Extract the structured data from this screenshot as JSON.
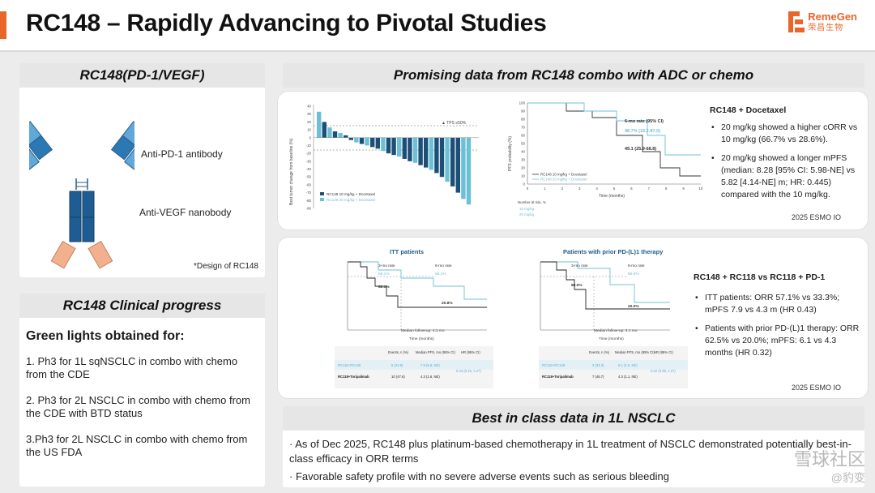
{
  "header": {
    "title": "RC148 – Rapidly Advancing to Pivotal Studies",
    "logo_text": "RemeGen",
    "logo_cn": "荣昌生物"
  },
  "mechanism": {
    "heading": "RC148(PD-1/VEGF)",
    "pd1_label": "Anti-PD-1 antibody",
    "vegf_label": "Anti-VEGF nanobody",
    "note": "*Design of RC148"
  },
  "progress": {
    "heading": "RC148 Clinical progress",
    "subtitle": "Green lights obtained for:",
    "items": [
      "1. Ph3 for 1L sqNSCLC in combo with chemo from the CDE",
      "2. Ph3 for 2L NSCLC in combo with chemo from the CDE with BTD status",
      "3.Ph3 for 2L NSCLC in combo with chemo from the US FDA"
    ]
  },
  "data_section": {
    "heading": "Promising data from RC148 combo with ADC or chemo",
    "card1": {
      "title": "RC148 + Docetaxel",
      "bullets": [
        "20 mg/kg showed a higher cORR vs 10 mg/kg (66.7% vs 28.6%).",
        "20 mg/kg showed a longer mPFS (median: 8.28 [95% CI: 5.98-NE] vs 5.82 [4.14-NE] m; HR: 0.445) compared with the 10 mg/kg."
      ],
      "source": "2025 ESMO IO",
      "waterfall": {
        "ylabel": "Best tumor change from baseline (%)",
        "y_ticks": [
          "40",
          "30",
          "20",
          "10",
          "0",
          "-10",
          "-20",
          "-30",
          "-40",
          "-50",
          "-60",
          "-70",
          "-80",
          "-90"
        ],
        "tps_label": "▲ TPS ≥50%",
        "legend": [
          "RC148 10 mg/kg + Docetaxel",
          "RC148 20 mg/kg + Docetaxel"
        ]
      },
      "km": {
        "ylabel": "PFS probability (%)",
        "xlabel": "Time (months)",
        "rate_label": "6-mo rate (95% CI)",
        "rate_20": "48.7% (16.2-87.0)",
        "rate_10": "49.1 (25.9-68.8)",
        "y_ticks": [
          "100",
          "90",
          "80",
          "70",
          "60",
          "50",
          "40",
          "30",
          "20",
          "10",
          "0"
        ],
        "x_ticks": [
          "0",
          "1",
          "2",
          "3",
          "4",
          "5",
          "6",
          "7",
          "8",
          "9",
          "10"
        ],
        "legend": [
          "RC148 10 mg/kg + Docetaxel",
          "RC148 20 mg/kg + Docetaxel"
        ],
        "risk_label": "Number at risk, %",
        "risk_rows": [
          "10 mg/kg",
          "20 mg/kg"
        ]
      }
    },
    "card2": {
      "title": "RC148 + RC118 vs RC118 + PD-1",
      "bullets": [
        "ITT patients: ORR  57.1% vs 33.3%; mPFS 7.9 vs 4.3 m (HR 0.43)",
        "Patients with prior PD-(L)1 therapy: ORR 62.5% vs 20.0%; mPFS: 6.1 vs 4.3 months (HR 0.32)"
      ],
      "source": "2025 ESMO IO",
      "itt": {
        "title": "ITT patients",
        "rate3": "3-mo rate",
        "rate6": "6-mo rate",
        "val_a": "82.1%",
        "val_b": "66.1%",
        "val_c": "20.8%",
        "val_d": "66.1%",
        "xlabel": "Time (months)",
        "followup": "Median follow-up: 4.1 mo",
        "table_headers": [
          "Events, n (%)",
          "Median PFS, mo (95% CI)",
          "HR (95% CI)"
        ],
        "table_rows": [
          {
            "arm": "RC118+RC148",
            "events": "5 (23.8)",
            "pfs": "7.9 (5.6, NE)",
            "color": "#5aaecc"
          },
          {
            "arm": "RC118+Toripalimab",
            "events": "10 (47.6)",
            "pfs": "4.3 (1.6, NE)",
            "color": "#222"
          }
        ],
        "hr": "0.43 (0.15, 1.27)"
      },
      "prior": {
        "title": "Patients with prior PD-(L)1 therapy",
        "rate3": "3-mo rate",
        "rate6": "6-mo rate",
        "val_a": "80.0%",
        "val_b": "80.0%",
        "val_c": "20.0%",
        "xlabel": "Time (months)",
        "followup": "Median follow-up: 4.1 mo",
        "table_headers": [
          "Events, n (%)",
          "Median PFS, mo (95% CI)",
          "HR (95% CI)"
        ],
        "table_rows": [
          {
            "arm": "RC118+RC148",
            "events": "3 (33.3)",
            "pfs": "6.1 (2.6, NE)",
            "color": "#5aaecc"
          },
          {
            "arm": "RC118+Toripalimab",
            "events": "7 (46.7)",
            "pfs": "4.3 (1.1, NE)",
            "color": "#222"
          }
        ],
        "hr": "0.32 (0.08, 1.27)"
      }
    }
  },
  "best": {
    "heading": "Best in class data in 1L NSCLC",
    "items": [
      "· As of Dec 2025, RC148 plus platinum-based chemotherapy in 1L treatment of NSCLC demonstrated potentially best-in-class efficacy in ORR terms",
      "· Favorable safety profile with no severe adverse events such as serious bleeding"
    ]
  },
  "watermark": {
    "line1": "雪球社区",
    "line2": "@豹变"
  },
  "colors": {
    "accent": "#e8662a",
    "navy": "#1c4f78",
    "teal": "#6cc0d6",
    "dark_blue": "#1f5d8c"
  }
}
